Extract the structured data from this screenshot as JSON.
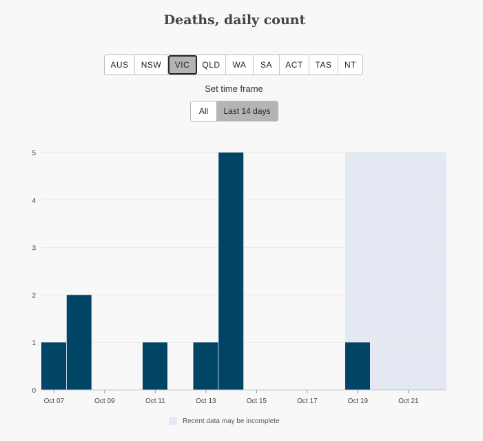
{
  "header": {
    "title": "Deaths, daily count"
  },
  "regions": {
    "options": [
      "AUS",
      "NSW",
      "VIC",
      "QLD",
      "WA",
      "SA",
      "ACT",
      "TAS",
      "NT"
    ],
    "selected": "VIC"
  },
  "timeframe": {
    "label": "Set time frame",
    "options": [
      "All",
      "Last 14 days"
    ],
    "selected": "Last 14 days"
  },
  "legend": {
    "label": "Recent data may be incomplete"
  },
  "colors": {
    "bar": "#004466",
    "incomplete_band": "#e3e8f2",
    "grid": "#e8e8e8"
  },
  "chart_data": {
    "type": "bar",
    "x": [
      "Oct 07",
      "Oct 08",
      "Oct 09",
      "Oct 10",
      "Oct 11",
      "Oct 12",
      "Oct 13",
      "Oct 14",
      "Oct 15",
      "Oct 16",
      "Oct 17",
      "Oct 18",
      "Oct 19",
      "Oct 20",
      "Oct 21"
    ],
    "values": [
      1,
      2,
      0,
      0,
      1,
      0,
      1,
      5,
      0,
      0,
      0,
      0,
      1,
      0,
      0
    ],
    "x_ticks": [
      "Oct 07",
      "Oct 09",
      "Oct 11",
      "Oct 13",
      "Oct 15",
      "Oct 17",
      "Oct 19",
      "Oct 21"
    ],
    "y_ticks": [
      0,
      1,
      2,
      3,
      4,
      5
    ],
    "ylim": [
      0,
      5
    ],
    "incomplete_from": "Oct 19",
    "grid": "horizontal"
  }
}
